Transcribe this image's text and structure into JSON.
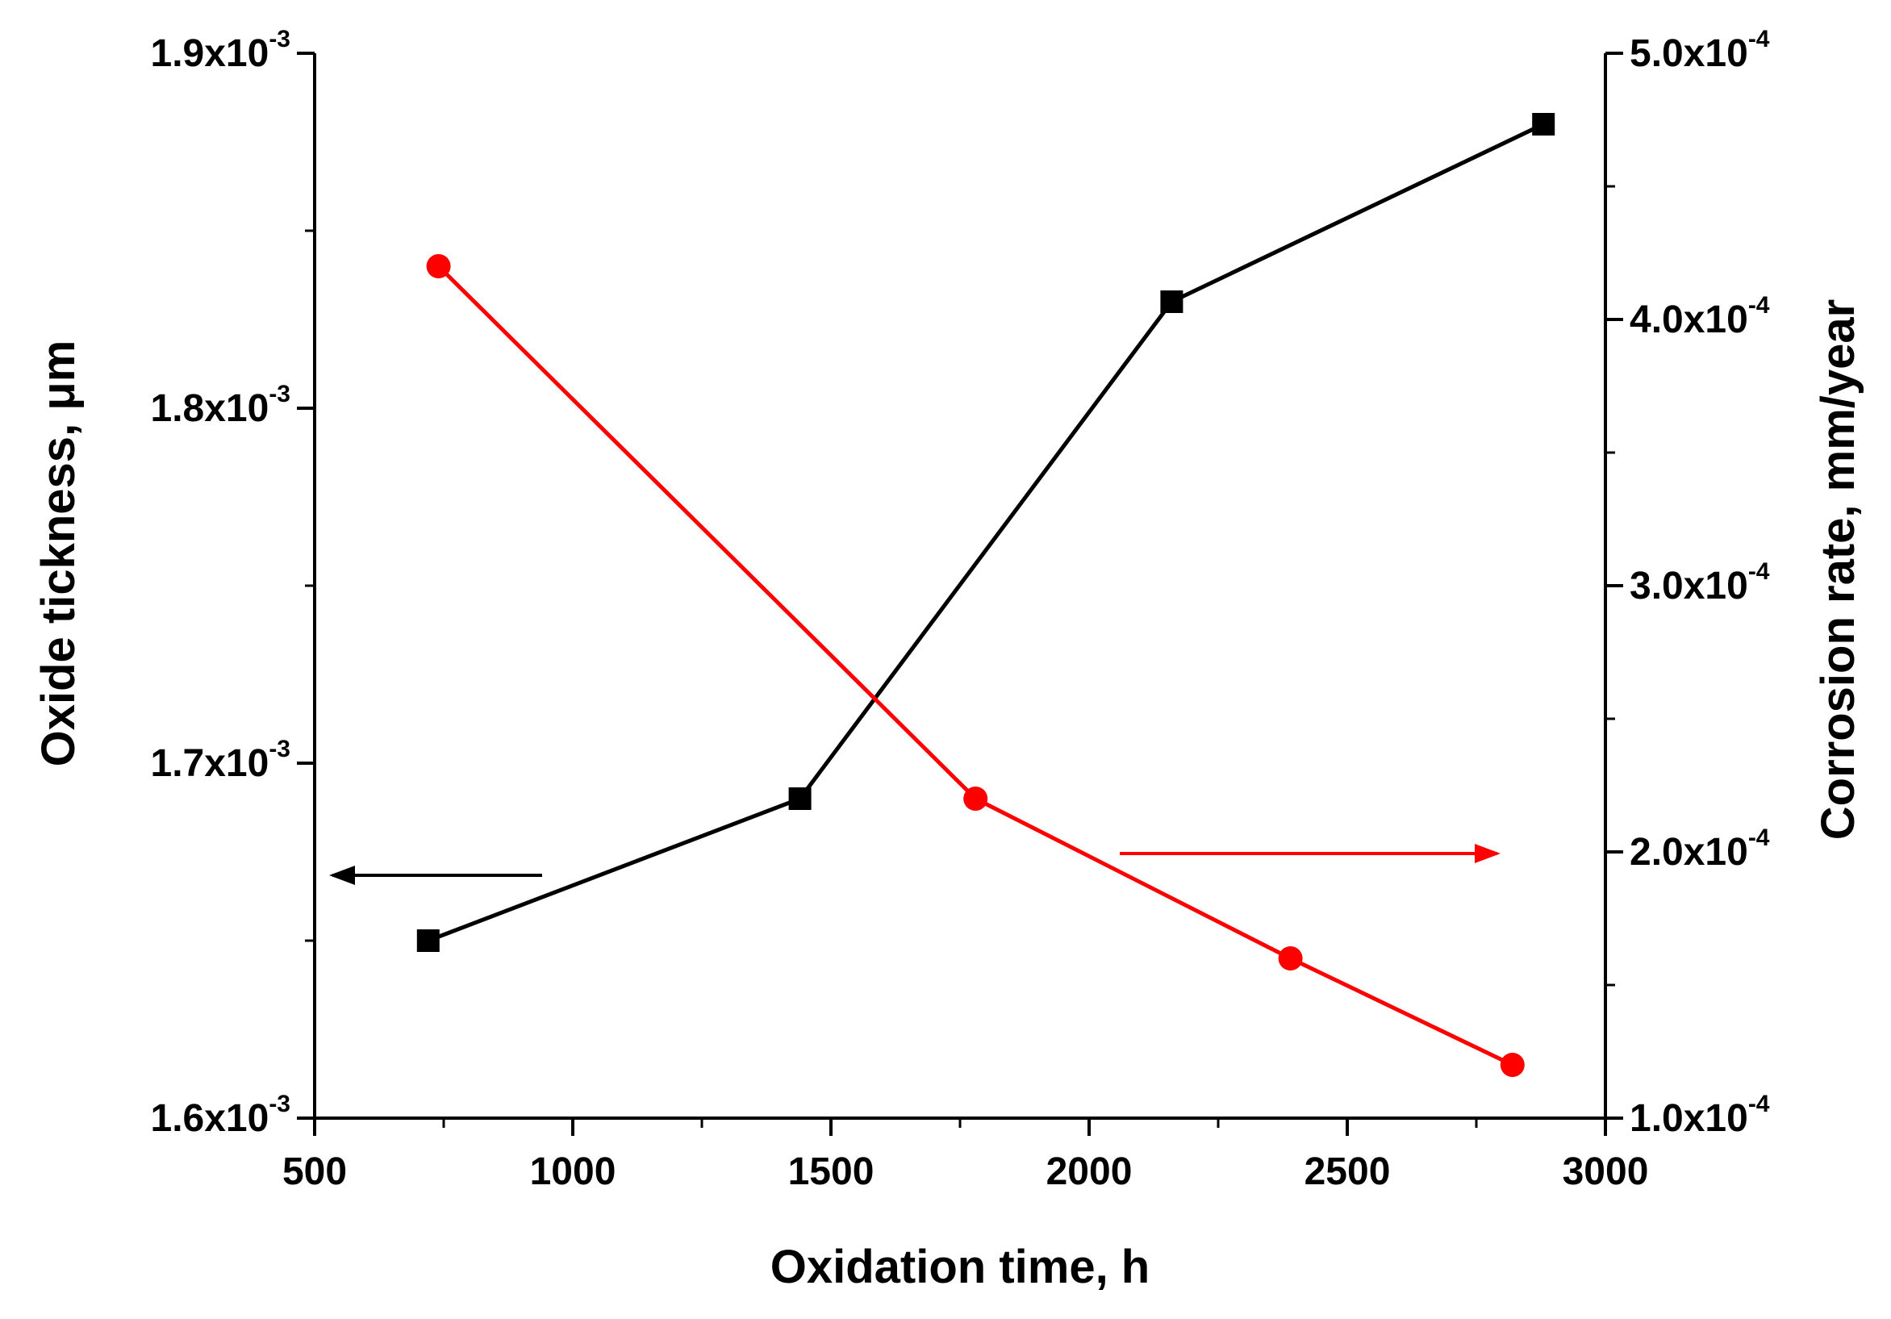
{
  "chart_data": {
    "type": "line",
    "xlabel": "Oxidation time, h",
    "ylabel_left": "Oxide tickness, μm",
    "ylabel_right": "Corrosion rate, mm/year",
    "xlim": [
      500,
      3000
    ],
    "x_ticks": [
      500,
      1000,
      1500,
      2000,
      2500,
      3000
    ],
    "x_tick_labels": [
      "500",
      "1000",
      "1500",
      "2000",
      "2500",
      "3000"
    ],
    "ylim_left": [
      0.0016,
      0.0019
    ],
    "y_left_ticks": [
      0.0016,
      0.0017,
      0.0018,
      0.0019
    ],
    "y_left_tick_labels": [
      {
        "mantissa": "1.6x10",
        "exp": "-3"
      },
      {
        "mantissa": "1.7x10",
        "exp": "-3"
      },
      {
        "mantissa": "1.8x10",
        "exp": "-3"
      },
      {
        "mantissa": "1.9x10",
        "exp": "-3"
      }
    ],
    "ylim_right": [
      0.0001,
      0.0005
    ],
    "y_right_ticks": [
      0.0001,
      0.0002,
      0.0003,
      0.0004,
      0.0005
    ],
    "y_right_tick_labels": [
      {
        "mantissa": "1.0x10",
        "exp": "-4"
      },
      {
        "mantissa": "2.0x10",
        "exp": "-4"
      },
      {
        "mantissa": "3.0x10",
        "exp": "-4"
      },
      {
        "mantissa": "4.0x10",
        "exp": "-4"
      },
      {
        "mantissa": "5.0x10",
        "exp": "-4"
      }
    ],
    "series": [
      {
        "name": "Oxide thickness",
        "axis": "left",
        "color": "#000000",
        "marker": "square",
        "x": [
          720,
          1440,
          2160,
          2880
        ],
        "y": [
          0.00165,
          0.00169,
          0.00183,
          0.00188
        ]
      },
      {
        "name": "Corrosion rate",
        "axis": "right",
        "color": "#ff0000",
        "marker": "circle",
        "x": [
          740,
          1780,
          2390,
          2820
        ],
        "y": [
          0.00042,
          0.00022,
          0.00016,
          0.00012
        ]
      }
    ],
    "annotations": [
      {
        "type": "arrow",
        "direction": "left",
        "points_to": "left-axis",
        "color": "#000000"
      },
      {
        "type": "arrow",
        "direction": "right",
        "points_to": "right-axis",
        "color": "#ff0000"
      }
    ]
  }
}
